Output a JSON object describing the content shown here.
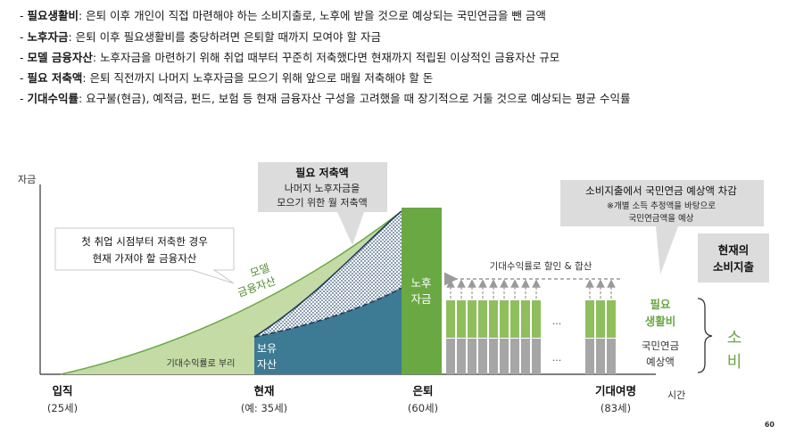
{
  "definitions": [
    {
      "term": "필요생활비",
      "text": ": 은퇴 이후 개인이 직접 마련해야 하는 소비지출로, 노후에 받을 것으로 예상되는 국민연금을 뺀 금액"
    },
    {
      "term": "노후자금",
      "text": ": 은퇴 이후 필요생활비를 충당하려면 은퇴할 때까지 모여야 할 자금"
    },
    {
      "term": "모델 금융자산",
      "text": ": 노후자금을 마련하기 위해 취업 때부터 꾸준히 저축했다면 현재까지 적립된 이상적인 금융자산 규모"
    },
    {
      "term": "필요 저축액",
      "text": ": 은퇴 직전까지 나머지 노후자금을 모으기 위해 앞으로 매월 저축해야 할 돈"
    },
    {
      "term": "기대수익률",
      "text": ": 요구불(현금), 예적금, 펀드, 보험 등 현재 금융자산 구성을 고려했을 때 장기적으로 거둘 것으로 예상되는 평균 수익률"
    }
  ],
  "axis": {
    "y_label": "자금",
    "x_label": "시간"
  },
  "timeline": [
    {
      "label": "입직",
      "sub": "(25세)"
    },
    {
      "label": "현재",
      "sub": "(예: 35세)"
    },
    {
      "label": "은퇴",
      "sub": "(60세)"
    },
    {
      "label": "기대여명",
      "sub": "(83세)"
    }
  ],
  "callouts": {
    "required_savings": {
      "title": "필요 저축액",
      "line1": "나머지 노후자금을",
      "line2": "모으기 위한 월 저축액"
    },
    "first_job": {
      "line1": "첫 취업 시점부터 저축한 경우",
      "line2": "현재 가져야 할 금융자산"
    },
    "consumption_minus_pension": {
      "title": "소비지출에서 국민연금 예상액 차감",
      "line1": "※개별 소득 추정액을 바탕으로",
      "line2": "국민연금액을 예상"
    },
    "current_consumption": {
      "line1": "현재의",
      "line2": "소비지출"
    }
  },
  "labels": {
    "model_assets_1": "모델",
    "model_assets_2": "금융자산",
    "compound_note": "기대수익률로 부리",
    "holding_1": "보유",
    "holding_2": "자산",
    "retire_fund_1": "노후",
    "retire_fund_2": "자금",
    "discount_note": "기대수익률로 할인 & 합산",
    "ellipsis": "...",
    "need_1": "필요",
    "need_2": "생활비",
    "pension_1": "국민연금",
    "pension_2": "예상액",
    "consume_1": "소",
    "consume_2": "비"
  },
  "page_number": "60",
  "colors": {
    "light_green": "#c4dba6",
    "mid_green": "#8fbf5c",
    "dark_green": "#6aa843",
    "teal": "#3d7a93",
    "navy": "#1f3b5c",
    "gray": "#a6a6a6",
    "callout_gray": "#dcdcdc"
  }
}
